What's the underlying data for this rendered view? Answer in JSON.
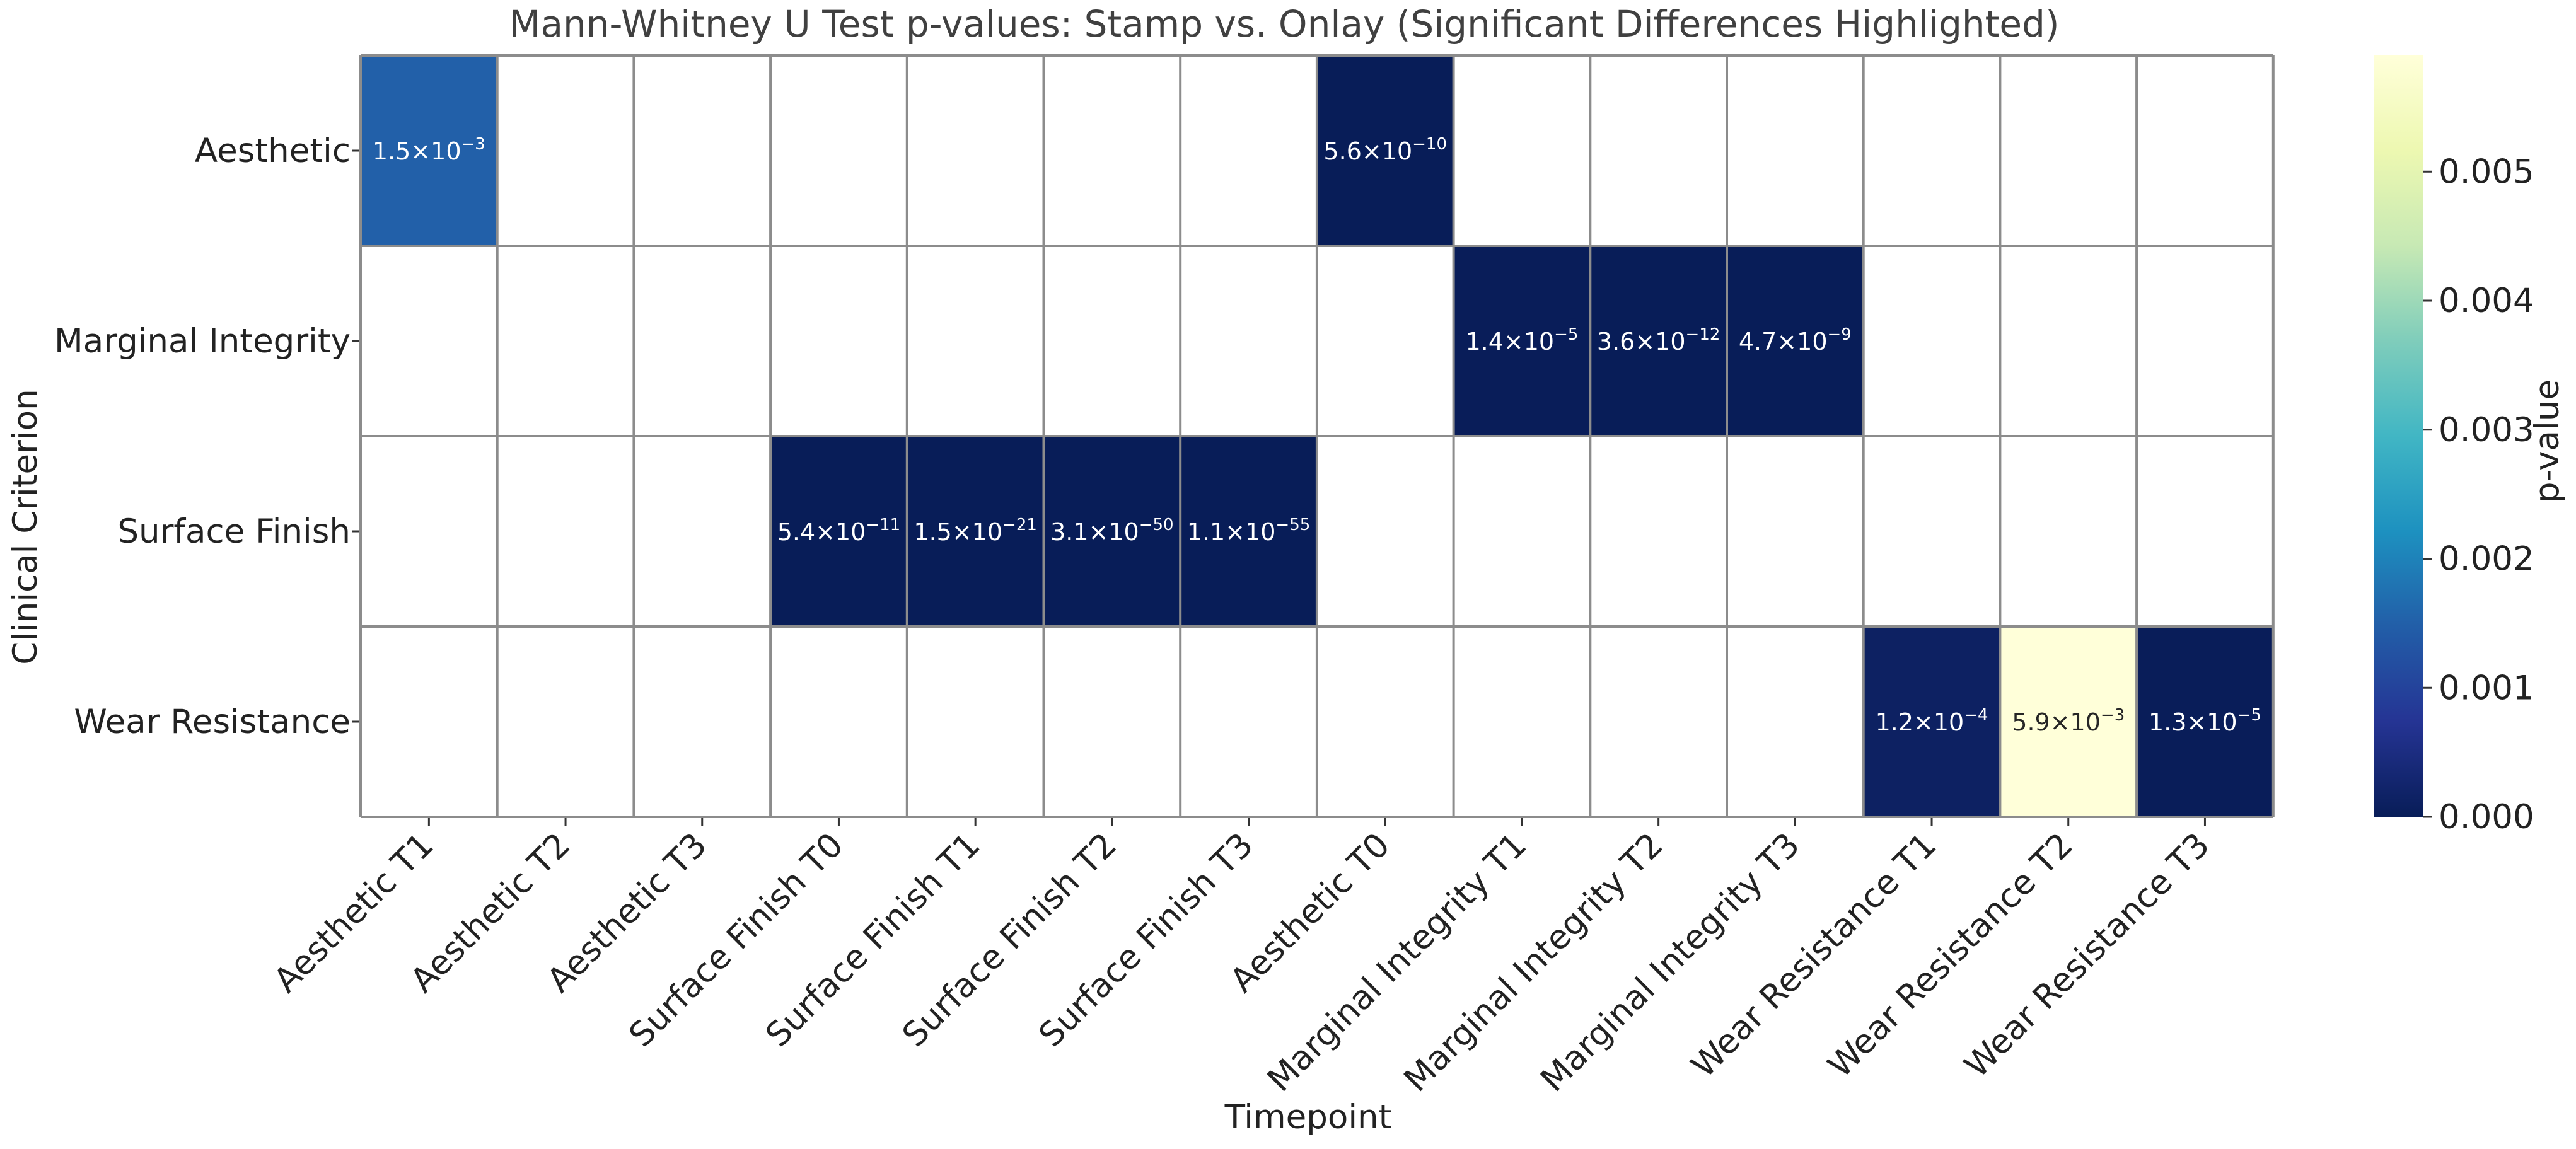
{
  "chart_data": {
    "type": "heatmap",
    "title": "Mann-Whitney U Test p-values: Stamp vs. Onlay (Significant Differences Highlighted)",
    "xlabel": "Timepoint",
    "ylabel": "Clinical Criterion",
    "x_categories": [
      "Aesthetic T1",
      "Aesthetic T2",
      "Aesthetic T3",
      "Surface Finish T0",
      "Surface Finish T1",
      "Surface Finish T2",
      "Surface Finish T3",
      "Aesthetic T0",
      "Marginal Integrity T1",
      "Marginal Integrity T2",
      "Marginal Integrity T3",
      "Wear Resistance T1",
      "Wear Resistance T2",
      "Wear Resistance T3"
    ],
    "y_categories": [
      "Aesthetic",
      "Marginal Integrity",
      "Surface Finish",
      "Wear Resistance"
    ],
    "cells": [
      {
        "row": 0,
        "col": 0,
        "value": 0.0015,
        "mantissa": "1.5",
        "exponent": "−3"
      },
      {
        "row": 0,
        "col": 7,
        "value": 5.6e-10,
        "mantissa": "5.6",
        "exponent": "−10"
      },
      {
        "row": 1,
        "col": 8,
        "value": 1.4e-05,
        "mantissa": "1.4",
        "exponent": "−5"
      },
      {
        "row": 1,
        "col": 9,
        "value": 3.6e-12,
        "mantissa": "3.6",
        "exponent": "−12"
      },
      {
        "row": 1,
        "col": 10,
        "value": 4.7e-09,
        "mantissa": "4.7",
        "exponent": "−9"
      },
      {
        "row": 2,
        "col": 3,
        "value": 5.4e-11,
        "mantissa": "5.4",
        "exponent": "−11"
      },
      {
        "row": 2,
        "col": 4,
        "value": 1.5e-21,
        "mantissa": "1.5",
        "exponent": "−21"
      },
      {
        "row": 2,
        "col": 5,
        "value": 3.1e-50,
        "mantissa": "3.1",
        "exponent": "−50"
      },
      {
        "row": 2,
        "col": 6,
        "value": 1.1e-55,
        "mantissa": "1.1",
        "exponent": "−55"
      },
      {
        "row": 3,
        "col": 11,
        "value": 0.00012,
        "mantissa": "1.2",
        "exponent": "−4"
      },
      {
        "row": 3,
        "col": 12,
        "value": 0.0059,
        "mantissa": "5.9",
        "exponent": "−3"
      },
      {
        "row": 3,
        "col": 13,
        "value": 1.3e-05,
        "mantissa": "1.3",
        "exponent": "−5"
      }
    ],
    "colorbar": {
      "label": "p-value",
      "range": [
        0,
        0.0059
      ],
      "ticks": [
        0.0,
        0.001,
        0.002,
        0.003,
        0.004,
        0.005
      ],
      "tick_labels": [
        "0.000",
        "0.001",
        "0.002",
        "0.003",
        "0.004",
        "0.005"
      ],
      "colormap": "YlGnBu",
      "stops": [
        "#081d58",
        "#253494",
        "#225ea8",
        "#1d91c0",
        "#41b6c4",
        "#7fcdbb",
        "#c7e9b4",
        "#edf8b1",
        "#ffffd9"
      ]
    },
    "empty_cell_color": "#ffffff",
    "grid_color": "#8c8c8c",
    "grid": true
  }
}
